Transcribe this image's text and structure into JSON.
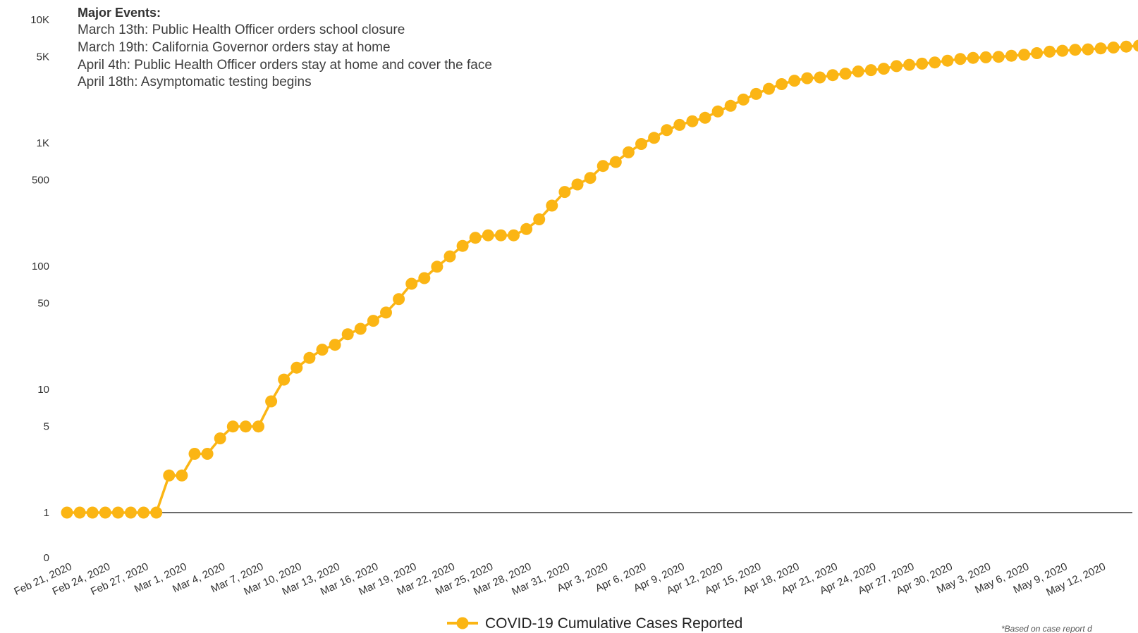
{
  "chart_data": {
    "type": "line",
    "yscale": "log",
    "ylim": [
      1,
      10000
    ],
    "yticks": [
      {
        "label": "10K",
        "value": 10000
      },
      {
        "label": "5K",
        "value": 5000
      },
      {
        "label": "1K",
        "value": 1000
      },
      {
        "label": "500",
        "value": 500
      },
      {
        "label": "100",
        "value": 100
      },
      {
        "label": "50",
        "value": 50
      },
      {
        "label": "10",
        "value": 10
      },
      {
        "label": "5",
        "value": 5
      },
      {
        "label": "1",
        "value": 1
      }
    ],
    "y_zero_label": "0",
    "x_start": "2020-02-21",
    "x_tick_labels": [
      "Feb 21, 2020",
      "Feb 24, 2020",
      "Feb 27, 2020",
      "Mar 1, 2020",
      "Mar 4, 2020",
      "Mar 7, 2020",
      "Mar 10, 2020",
      "Mar 13, 2020",
      "Mar 16, 2020",
      "Mar 19, 2020",
      "Mar 22, 2020",
      "Mar 25, 2020",
      "Mar 28, 2020",
      "Mar 31, 2020",
      "Apr 3, 2020",
      "Apr 6, 2020",
      "Apr 9, 2020",
      "Apr 12, 2020",
      "Apr 15, 2020",
      "Apr 18, 2020",
      "Apr 21, 2020",
      "Apr 24, 2020",
      "Apr 27, 2020",
      "Apr 30, 2020",
      "May 3, 2020",
      "May 6, 2020",
      "May 9, 2020",
      "May 12, 2020"
    ],
    "series": [
      {
        "name": "COVID-19 Cumulative Cases Reported",
        "color": "#FBB514",
        "values": [
          1,
          1,
          1,
          1,
          1,
          1,
          1,
          1,
          2,
          2,
          3,
          3,
          4,
          5,
          5,
          5,
          8,
          12,
          15,
          18,
          21,
          23,
          28,
          31,
          36,
          42,
          54,
          72,
          80,
          99,
          120,
          146,
          170,
          178,
          178,
          178,
          200,
          240,
          310,
          400,
          460,
          520,
          650,
          700,
          840,
          980,
          1100,
          1270,
          1400,
          1500,
          1600,
          1800,
          2000,
          2250,
          2500,
          2750,
          3000,
          3200,
          3350,
          3400,
          3550,
          3650,
          3800,
          3900,
          4000,
          4200,
          4300,
          4400,
          4500,
          4650,
          4800,
          4900,
          4950,
          5000,
          5100,
          5200,
          5350,
          5500,
          5600,
          5700,
          5750,
          5850,
          5950,
          6050,
          6150,
          6250,
          6350
        ]
      }
    ],
    "annotations": {
      "title": "Major Events:",
      "lines": [
        "March 13th: Public Health Officer orders school closure",
        "March 19th: California Governor orders stay at home",
        "April 4th: Public Health Officer orders stay at home and cover the face",
        "April 18th: Asymptomatic testing begins"
      ]
    },
    "legend_position": "bottom-center",
    "footnote": "*Based on case report d"
  }
}
